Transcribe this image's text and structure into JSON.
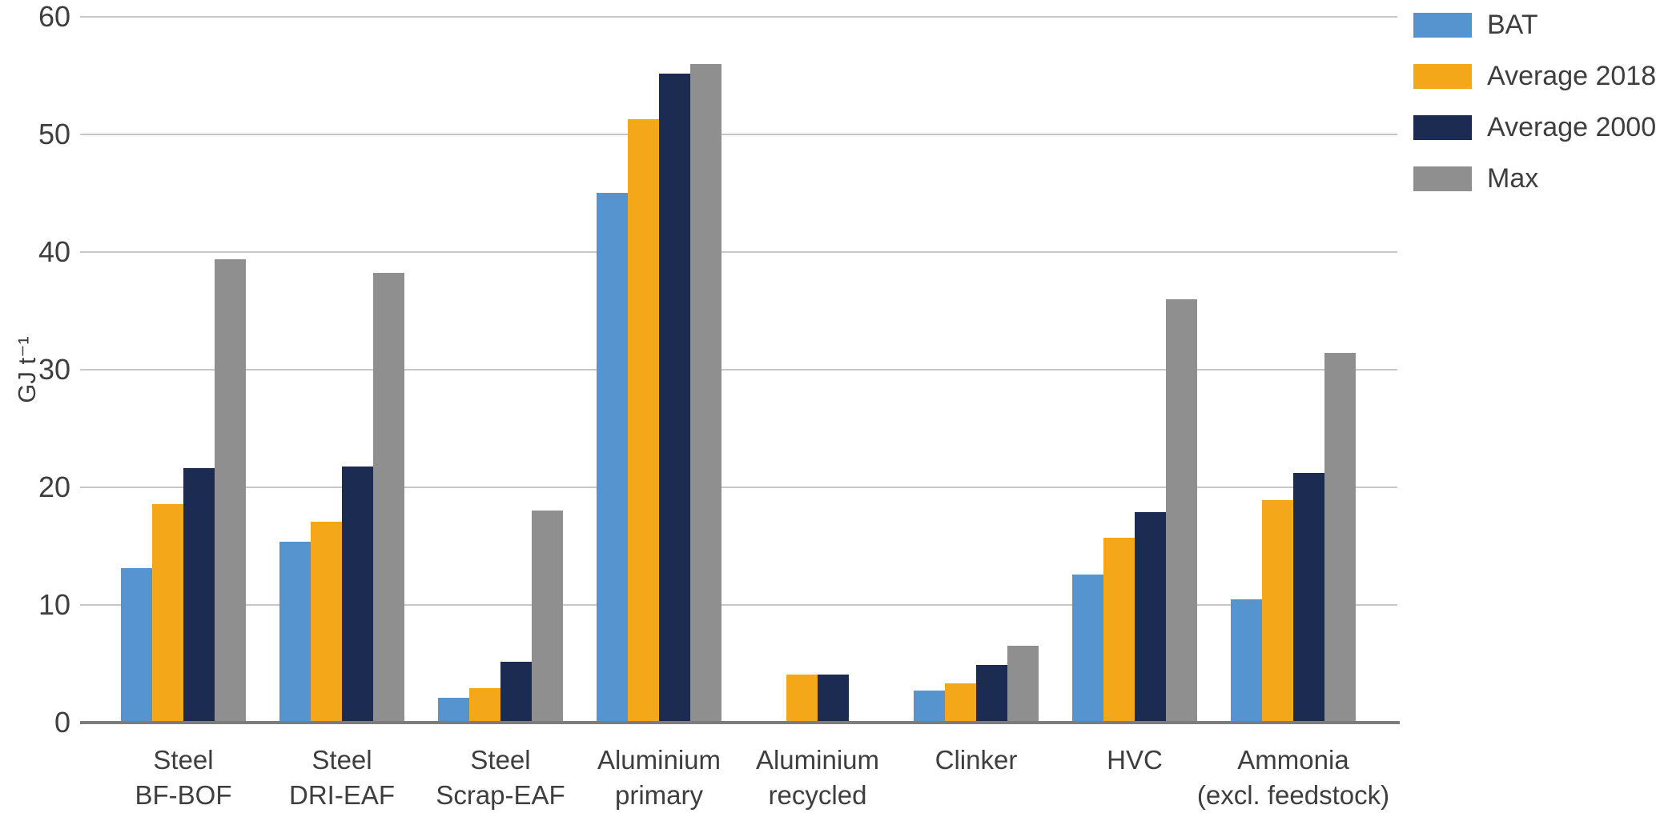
{
  "chart_data": {
    "type": "bar",
    "title": "",
    "xlabel": "",
    "ylabel": "GJ t⁻¹",
    "ylim": [
      0,
      60
    ],
    "yticks": [
      0,
      10,
      20,
      30,
      40,
      50,
      60
    ],
    "grid": true,
    "legend_position": "top-right",
    "categories": [
      "Steel BF-BOF",
      "Steel DRI-EAF",
      "Steel Scrap-EAF",
      "Aluminium primary",
      "Aluminium recycled",
      "Clinker",
      "HVC",
      "Ammonia (excl. feedstock)"
    ],
    "category_lines": [
      [
        "Steel",
        "BF-BOF"
      ],
      [
        "Steel",
        "DRI-EAF"
      ],
      [
        "Steel",
        "Scrap-EAF"
      ],
      [
        "Aluminium",
        "primary"
      ],
      [
        "Aluminium",
        "recycled"
      ],
      [
        "Clinker"
      ],
      [
        "HVC"
      ],
      [
        "Ammonia",
        "(excl. feedstock)"
      ]
    ],
    "series": [
      {
        "name": "BAT",
        "color": "#5594CE",
        "values": [
          13.1,
          15.4,
          2.1,
          45.0,
          0,
          2.7,
          12.6,
          10.5
        ]
      },
      {
        "name": "Average 2018",
        "color": "#F5A71A",
        "values": [
          18.6,
          17.1,
          2.9,
          51.3,
          4.1,
          3.3,
          15.7,
          18.9
        ]
      },
      {
        "name": "Average 2000",
        "color": "#1C2B52",
        "values": [
          21.6,
          21.8,
          5.2,
          55.2,
          4.1,
          4.9,
          17.9,
          21.2
        ]
      },
      {
        "name": "Max",
        "color": "#8F8F8F",
        "values": [
          39.4,
          38.2,
          18.0,
          56.0,
          0,
          6.5,
          36.0,
          31.4
        ]
      }
    ]
  },
  "colors": {
    "gridline": "#C7C7C7",
    "baseline": "#7C7C7C",
    "text": "#3E3E3E",
    "background": "#FFFFFF"
  }
}
